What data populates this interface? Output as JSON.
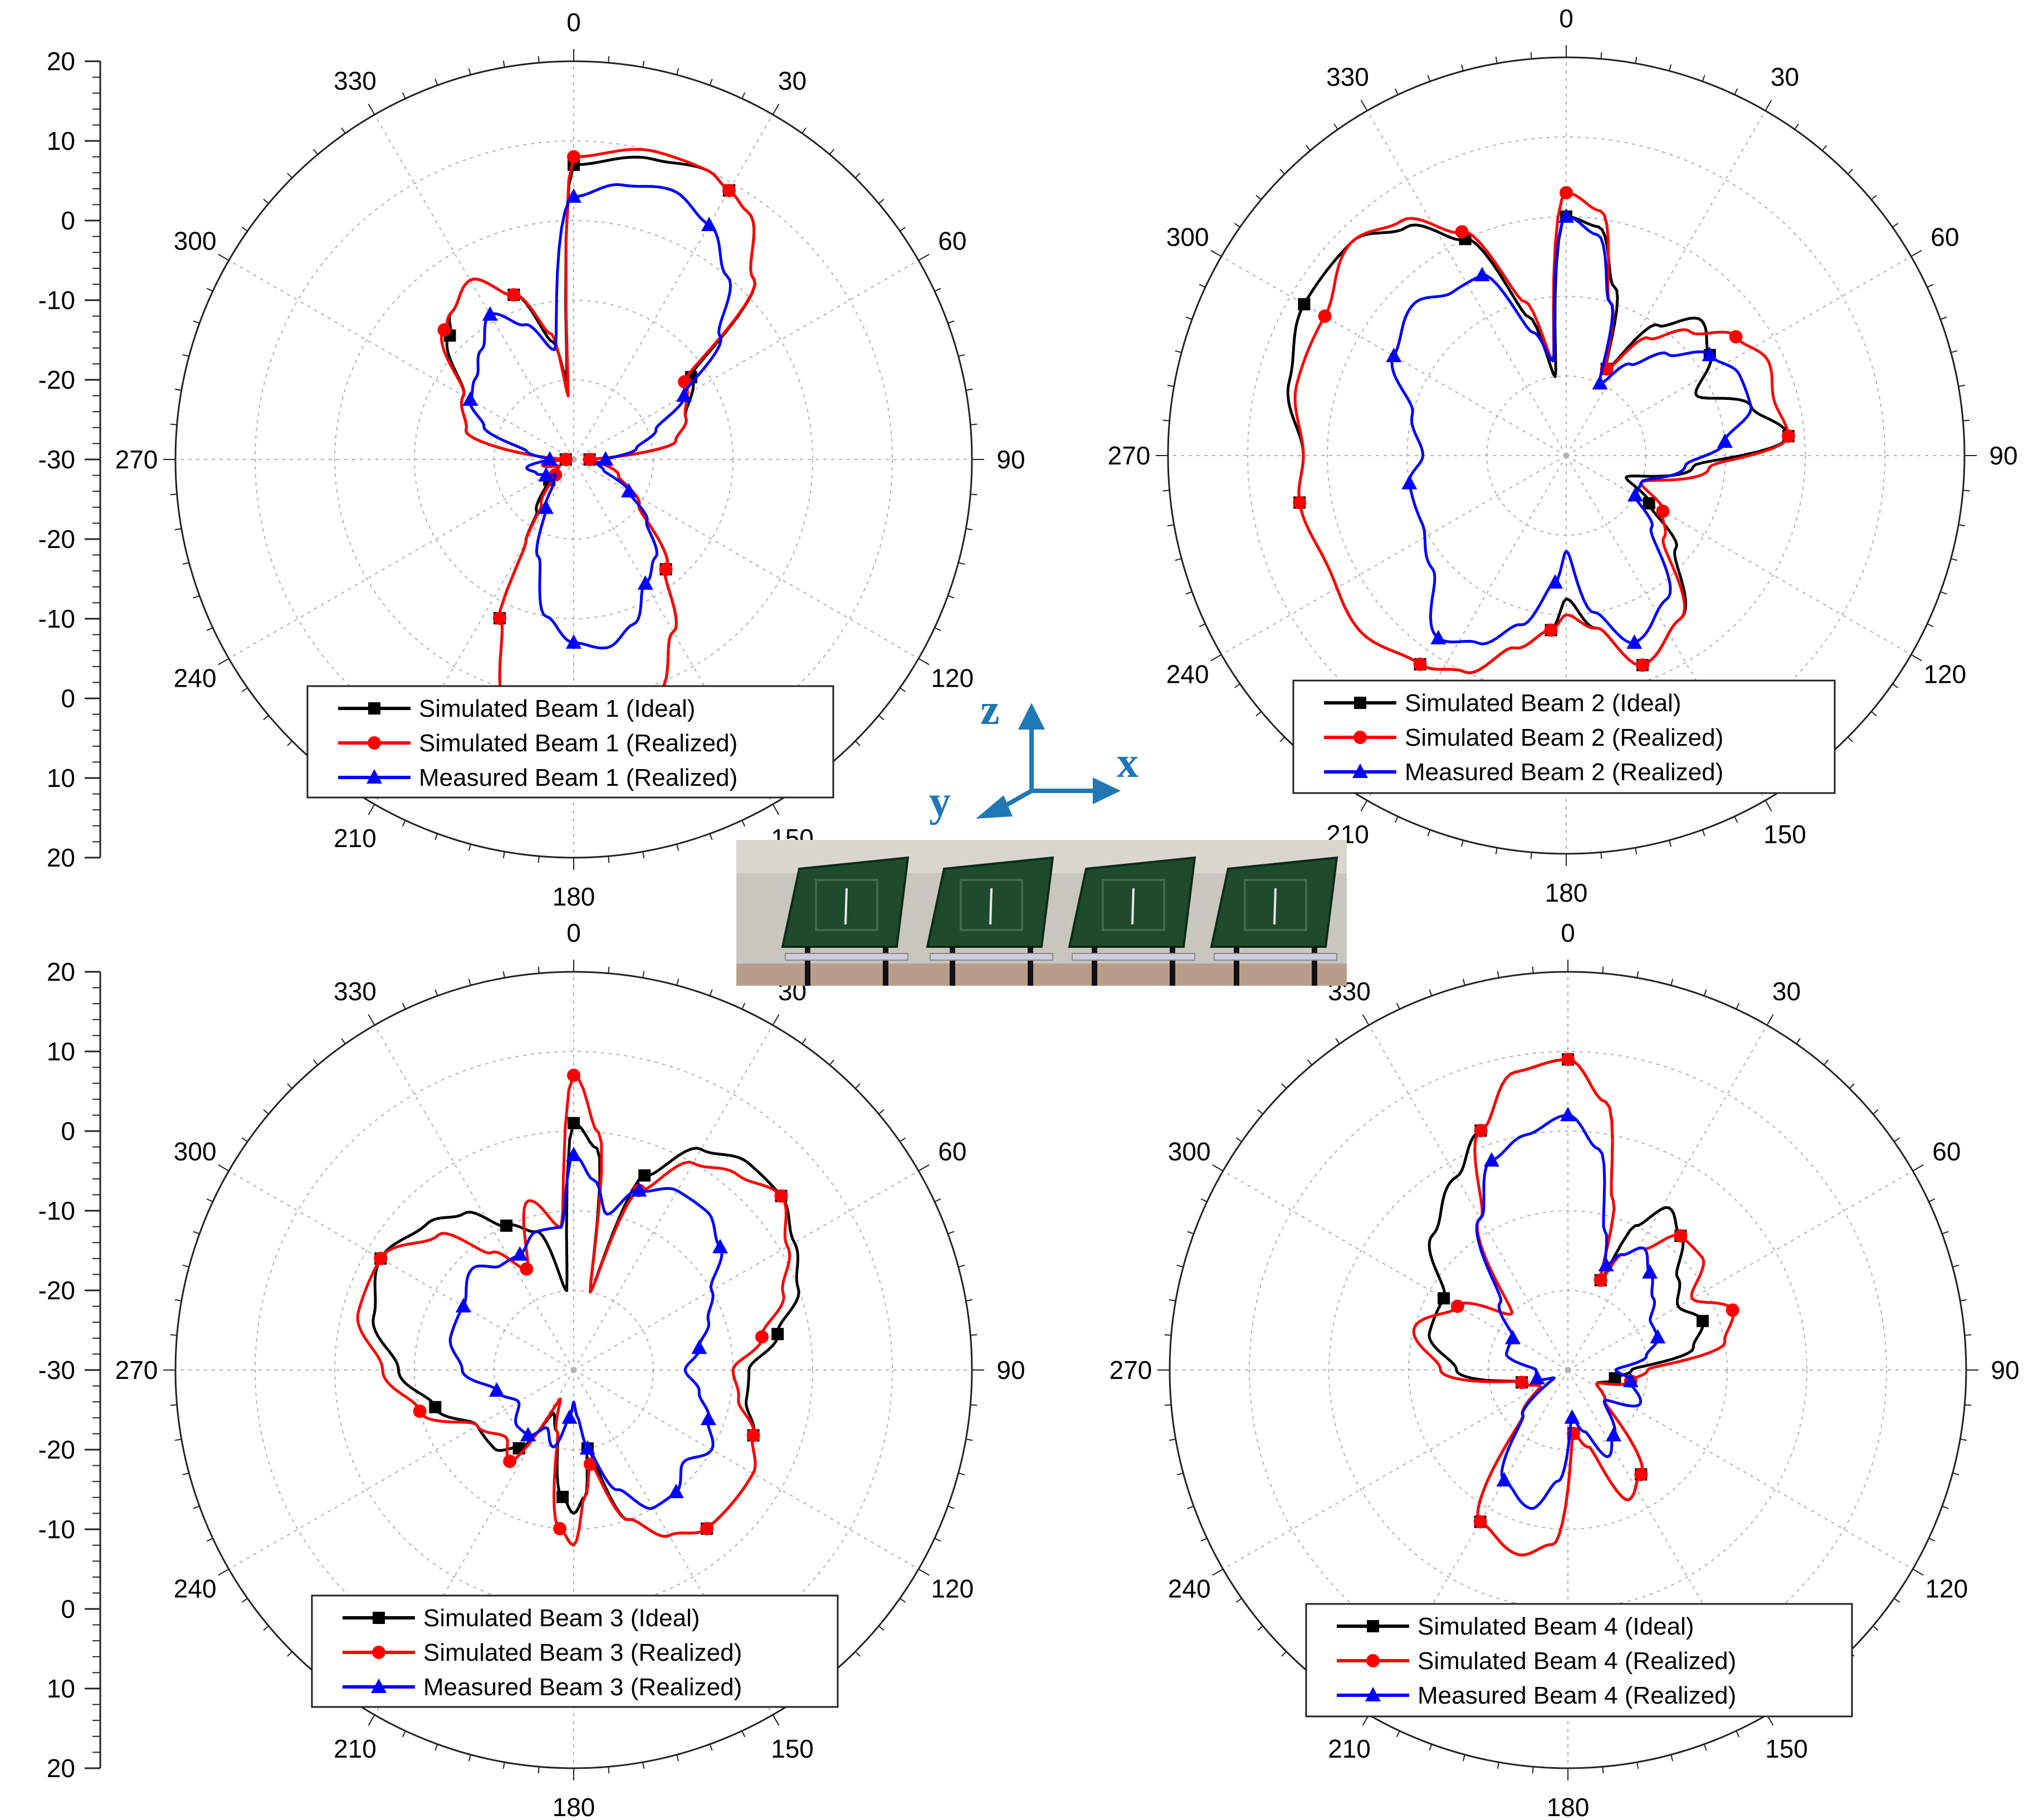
{
  "colors": {
    "ideal": "#000000",
    "realized": "#ff0000",
    "measured": "#0000ff",
    "axis_arrows": "#1f77b4",
    "board": "#1f4a2c"
  },
  "axes_icon": {
    "z": "z",
    "x": "x",
    "y": "y"
  },
  "photo_description_icon": "four-element-antenna-array-photo",
  "chart_data": [
    {
      "type": "line",
      "polar": true,
      "angle_labels": [
        "0",
        "30",
        "60",
        "90",
        "120",
        "150",
        "180",
        "210",
        "240",
        "270",
        "300",
        "330"
      ],
      "radial_axis_labels": [
        "20",
        "10",
        "0",
        "-10",
        "-20",
        "-30",
        "-20",
        "-10",
        "0",
        "10",
        "20"
      ],
      "radial_range": [
        -30,
        20
      ],
      "radial_grid_values": [
        -20,
        -10,
        0,
        10,
        20
      ],
      "legend_labels": [
        "Simulated Beam 1 (Ideal)",
        "Simulated Beam 1 (Realized)",
        "Measured Beam 1 (Realized)"
      ],
      "series": [
        {
          "name": "Simulated Beam 1 (Ideal)",
          "marker": "square",
          "angles": [
            0,
            15,
            25,
            30,
            35,
            45,
            55,
            70,
            80,
            90,
            110,
            125,
            140,
            150,
            160,
            170,
            180,
            195,
            205,
            210,
            215,
            230,
            245,
            260,
            270,
            285,
            300,
            315,
            320,
            330,
            340,
            350,
            355,
            360
          ],
          "values": [
            7,
            9,
            10,
            9,
            8,
            2,
            -12,
            -15,
            -17,
            -28,
            -24,
            -20,
            -12,
            -5,
            1,
            3,
            4,
            2,
            -8,
            -18,
            -22,
            -26,
            -28,
            -26,
            -29,
            -16,
            -14,
            -8,
            -6,
            -4,
            -8,
            -15,
            -20,
            7
          ]
        },
        {
          "name": "Simulated Beam 1 (Realized)",
          "marker": "circle",
          "angles": [
            0,
            15,
            25,
            30,
            35,
            45,
            55,
            70,
            80,
            90,
            110,
            125,
            140,
            150,
            160,
            170,
            180,
            195,
            205,
            210,
            215,
            230,
            245,
            260,
            270,
            285,
            300,
            315,
            320,
            330,
            340,
            350,
            355,
            360
          ],
          "values": [
            8,
            10,
            10,
            9,
            8,
            2,
            -13,
            -15,
            -17,
            -28,
            -24,
            -20,
            -12,
            -5,
            1,
            3,
            4,
            2,
            -8,
            -18,
            -23,
            -27,
            -28,
            -26,
            -29,
            -16,
            -14,
            -7,
            -6,
            -4,
            -8,
            -14,
            -22,
            8
          ]
        },
        {
          "name": "Measured Beam 1 (Realized)",
          "marker": "triangle",
          "angles": [
            0,
            10,
            20,
            30,
            40,
            50,
            60,
            70,
            80,
            90,
            100,
            110,
            120,
            130,
            140,
            150,
            160,
            170,
            180,
            190,
            200,
            210,
            220,
            230,
            240,
            250,
            260,
            270,
            280,
            290,
            300,
            310,
            320,
            330,
            340,
            350,
            360
          ],
          "values": [
            3,
            5,
            6,
            4,
            0,
            -6,
            -14,
            -19,
            -22,
            -26,
            -27,
            -26,
            -22,
            -18,
            -14,
            -12,
            -8,
            -6,
            -7,
            -10,
            -17,
            -23,
            -26,
            -27,
            -26,
            -25,
            -24,
            -27,
            -24,
            -18,
            -15,
            -14,
            -12,
            -9,
            -12,
            -16,
            3
          ]
        }
      ]
    },
    {
      "type": "line",
      "polar": true,
      "angle_labels": [
        "0",
        "30",
        "60",
        "90",
        "120",
        "150",
        "180",
        "210",
        "240",
        "270",
        "300",
        "330"
      ],
      "radial_axis_labels": [],
      "radial_range": [
        -30,
        20
      ],
      "radial_grid_values": [
        -20,
        -10,
        0,
        10,
        20
      ],
      "legend_labels": [
        "Simulated Beam 2 (Ideal)",
        "Simulated Beam 2 (Realized)",
        "Measured Beam 2 (Realized)"
      ],
      "series": [
        {
          "name": "Simulated Beam 2 (Ideal)",
          "marker": "square",
          "angles": [
            0,
            8,
            16,
            25,
            35,
            45,
            55,
            65,
            75,
            85,
            95,
            110,
            120,
            130,
            145,
            160,
            170,
            180,
            185,
            195,
            205,
            215,
            230,
            245,
            260,
            270,
            285,
            300,
            315,
            325,
            335,
            345,
            352,
            360
          ],
          "values": [
            0,
            -1,
            -8,
            -18,
            -10,
            -6,
            -8,
            -12,
            -6,
            -2,
            -14,
            -22,
            -18,
            -12,
            -5,
            -2,
            -8,
            -12,
            -8,
            -5,
            0,
            2,
            4,
            3,
            4,
            3,
            6,
            8,
            8,
            5,
            0,
            -12,
            -20,
            0
          ]
        },
        {
          "name": "Simulated Beam 2 (Realized)",
          "marker": "circle",
          "angles": [
            0,
            8,
            16,
            25,
            35,
            45,
            55,
            65,
            75,
            85,
            95,
            110,
            120,
            130,
            145,
            160,
            170,
            180,
            185,
            195,
            205,
            215,
            230,
            245,
            260,
            270,
            285,
            300,
            315,
            325,
            335,
            345,
            352,
            360
          ],
          "values": [
            3,
            1,
            -10,
            -18,
            -12,
            -8,
            -4,
            -2,
            -3,
            -2,
            -12,
            -20,
            -16,
            -14,
            -5,
            -2,
            -8,
            -10,
            -8,
            -5,
            0,
            2,
            4,
            3,
            4,
            3,
            5,
            5,
            8,
            6,
            1,
            -10,
            -18,
            3
          ]
        },
        {
          "name": "Measured Beam 2 (Realized)",
          "marker": "triangle",
          "angles": [
            0,
            8,
            16,
            25,
            35,
            45,
            55,
            65,
            75,
            85,
            95,
            110,
            120,
            130,
            145,
            160,
            170,
            180,
            185,
            195,
            205,
            215,
            230,
            245,
            260,
            270,
            285,
            300,
            315,
            325,
            335,
            345,
            352,
            360
          ],
          "values": [
            0,
            -2,
            -10,
            -20,
            -16,
            -12,
            -8,
            -6,
            -6,
            -10,
            -15,
            -20,
            -20,
            -16,
            -8,
            -5,
            -10,
            -18,
            -14,
            -8,
            -4,
            -2,
            -8,
            -10,
            -10,
            -12,
            -10,
            -5,
            -3,
            -5,
            -5,
            -14,
            -18,
            0
          ]
        }
      ]
    },
    {
      "type": "line",
      "polar": true,
      "angle_labels": [
        "0",
        "30",
        "60",
        "90",
        "120",
        "150",
        "180",
        "210",
        "240",
        "270",
        "300",
        "330"
      ],
      "radial_axis_labels": [
        "20",
        "10",
        "0",
        "-10",
        "-20",
        "-30",
        "-20",
        "-10",
        "0",
        "10",
        "20"
      ],
      "radial_range": [
        -30,
        20
      ],
      "radial_grid_values": [
        -20,
        -10,
        0,
        10,
        20
      ],
      "legend_labels": [
        "Simulated Beam 3 (Ideal)",
        "Simulated Beam 3 (Realized)",
        "Measured Beam 3 (Realized)"
      ],
      "series": [
        {
          "name": "Simulated Beam 3 (Ideal)",
          "marker": "square",
          "angles": [
            0,
            6,
            12,
            20,
            30,
            40,
            50,
            60,
            70,
            80,
            90,
            100,
            110,
            120,
            130,
            140,
            150,
            160,
            170,
            175,
            180,
            185,
            195,
            205,
            215,
            225,
            240,
            255,
            270,
            285,
            300,
            315,
            325,
            335,
            345,
            355,
            360
          ],
          "values": [
            1,
            -2,
            -20,
            -4,
            2,
            4,
            4,
            2,
            0,
            -4,
            -8,
            -8,
            -6,
            -4,
            -4,
            -4,
            -6,
            -10,
            -20,
            -14,
            -12,
            -14,
            -22,
            -24,
            -18,
            -16,
            -16,
            -12,
            -8,
            -4,
            -2,
            -4,
            -6,
            -10,
            -12,
            -20,
            1
          ]
        },
        {
          "name": "Simulated Beam 3 (Realized)",
          "marker": "circle",
          "angles": [
            0,
            6,
            12,
            20,
            30,
            40,
            50,
            60,
            70,
            80,
            90,
            100,
            110,
            120,
            130,
            140,
            150,
            160,
            170,
            175,
            180,
            185,
            195,
            205,
            215,
            225,
            240,
            255,
            270,
            285,
            300,
            315,
            325,
            335,
            345,
            355,
            360
          ],
          "values": [
            7,
            0,
            -20,
            -6,
            0,
            2,
            4,
            1,
            -2,
            -6,
            -10,
            -9,
            -6,
            -4,
            -4,
            -4,
            -6,
            -10,
            -18,
            -14,
            -8,
            -10,
            -22,
            -26,
            -16,
            -18,
            -16,
            -10,
            -6,
            -2,
            -2,
            -6,
            -12,
            -16,
            -8,
            -12,
            7
          ]
        },
        {
          "name": "Measured Beam 3 (Realized)",
          "marker": "triangle",
          "angles": [
            0,
            6,
            12,
            20,
            30,
            40,
            50,
            60,
            70,
            80,
            90,
            100,
            110,
            120,
            130,
            140,
            150,
            160,
            170,
            175,
            180,
            185,
            195,
            205,
            215,
            225,
            240,
            255,
            270,
            285,
            300,
            315,
            325,
            335,
            345,
            355,
            360
          ],
          "values": [
            -3,
            -6,
            -10,
            -6,
            -4,
            -4,
            -6,
            -10,
            -12,
            -14,
            -16,
            -14,
            -12,
            -10,
            -12,
            -10,
            -10,
            -14,
            -20,
            -24,
            -26,
            -24,
            -20,
            -22,
            -20,
            -20,
            -22,
            -20,
            -16,
            -14,
            -14,
            -12,
            -14,
            -14,
            -12,
            -12,
            -3
          ]
        }
      ]
    },
    {
      "type": "line",
      "polar": true,
      "angle_labels": [
        "0",
        "30",
        "60",
        "90",
        "120",
        "150",
        "180",
        "210",
        "240",
        "270",
        "300",
        "330"
      ],
      "radial_axis_labels": [],
      "radial_range": [
        -30,
        20
      ],
      "radial_grid_values": [
        -20,
        -10,
        0,
        10,
        20
      ],
      "legend_labels": [
        "Simulated Beam 4 (Ideal)",
        "Simulated Beam 4 (Realized)",
        "Measured Beam 4 (Realized)"
      ],
      "series": [
        {
          "name": "Simulated Beam 4 (Ideal)",
          "marker": "square",
          "angles": [
            0,
            8,
            15,
            20,
            25,
            32,
            40,
            50,
            60,
            70,
            80,
            90,
            100,
            115,
            130,
            145,
            155,
            165,
            175,
            185,
            195,
            210,
            225,
            240,
            255,
            270,
            285,
            300,
            315,
            330,
            340,
            350,
            360
          ],
          "values": [
            9,
            4,
            -8,
            -18,
            -10,
            -6,
            -8,
            -12,
            -14,
            -12,
            -14,
            -22,
            -24,
            -26,
            -24,
            -14,
            -12,
            -20,
            -22,
            -8,
            -6,
            -8,
            -22,
            -26,
            -24,
            -16,
            -12,
            -12,
            -6,
            -2,
            2,
            8,
            9
          ]
        },
        {
          "name": "Simulated Beam 4 (Realized)",
          "marker": "circle",
          "angles": [
            0,
            8,
            15,
            20,
            25,
            32,
            40,
            50,
            60,
            70,
            80,
            90,
            100,
            115,
            130,
            145,
            155,
            165,
            175,
            185,
            195,
            210,
            225,
            240,
            255,
            270,
            285,
            300,
            315,
            330,
            340,
            350,
            360
          ],
          "values": [
            9,
            4,
            -8,
            -18,
            -14,
            -12,
            -8,
            -8,
            -12,
            -8,
            -10,
            -20,
            -22,
            -26,
            -24,
            -14,
            -12,
            -20,
            -22,
            -8,
            -6,
            -8,
            -22,
            -26,
            -24,
            -14,
            -10,
            -14,
            -20,
            -8,
            2,
            8,
            9
          ]
        },
        {
          "name": "Measured Beam 4 (Realized)",
          "marker": "triangle",
          "angles": [
            0,
            8,
            15,
            20,
            25,
            32,
            40,
            50,
            60,
            70,
            80,
            90,
            100,
            115,
            130,
            145,
            155,
            165,
            175,
            185,
            195,
            210,
            225,
            240,
            255,
            270,
            285,
            300,
            315,
            330,
            340,
            350,
            360
          ],
          "values": [
            2,
            -2,
            -12,
            -16,
            -14,
            -12,
            -14,
            -16,
            -18,
            -18,
            -20,
            -24,
            -22,
            -20,
            -24,
            -20,
            -18,
            -22,
            -24,
            -16,
            -12,
            -14,
            -22,
            -28,
            -26,
            -26,
            -22,
            -22,
            -18,
            -8,
            -2,
            0,
            2
          ]
        }
      ]
    }
  ]
}
